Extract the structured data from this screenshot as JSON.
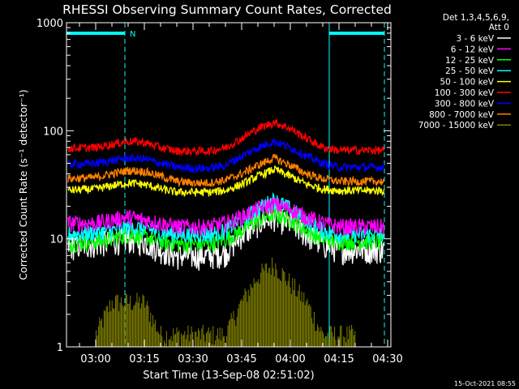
{
  "chart_data": {
    "type": "line",
    "title": "RHESSI Observing Summary Count Rates, Corrected",
    "xlabel": "Start Time (13-Sep-08 02:51:02)",
    "ylabel": "Corrected Count Rate (s⁻¹ detector⁻¹)",
    "y_scale": "log",
    "ylim": [
      1,
      1000
    ],
    "xlim": [
      "02:51",
      "04:31"
    ],
    "x_ticks": [
      "03:00",
      "03:15",
      "03:30",
      "03:45",
      "04:00",
      "04:15",
      "04:30"
    ],
    "y_ticks": [
      "1",
      "10",
      "100",
      "1000"
    ],
    "timestamp": "15-Oct-2021 08:55",
    "legend": {
      "header": [
        "Det 1,3,4,5,6,9,",
        "Att 0"
      ],
      "placement": "right"
    },
    "annotations": [
      {
        "label": "N",
        "color": "#00ffff"
      }
    ],
    "night_periods": [
      {
        "start": "02:51",
        "end": "03:09"
      },
      {
        "start": "04:12",
        "end": "04:29"
      }
    ],
    "x": [
      "02:51",
      "03:00",
      "03:05",
      "03:10",
      "03:15",
      "03:20",
      "03:25",
      "03:30",
      "03:35",
      "03:40",
      "03:45",
      "03:50",
      "03:55",
      "04:00",
      "04:05",
      "04:10",
      "04:15",
      "04:20",
      "04:25",
      "04:29"
    ],
    "series": [
      {
        "name": "3 - 6 keV",
        "color": "#ffffff",
        "values": [
          8.5,
          9,
          9.5,
          10,
          9.5,
          8,
          7,
          7,
          7,
          7.5,
          11,
          14,
          16,
          14,
          11,
          9,
          8,
          8,
          8,
          8
        ]
      },
      {
        "name": "6 - 12 keV",
        "color": "#ff00ff",
        "values": [
          14,
          14,
          15,
          16,
          15,
          14,
          13,
          13,
          13,
          14,
          16,
          19,
          21,
          19,
          16,
          14,
          13,
          13,
          13,
          13
        ]
      },
      {
        "name": "12 - 25 keV",
        "color": "#00ff00",
        "values": [
          9,
          9.5,
          10,
          11,
          10.5,
          9.5,
          9,
          9,
          9,
          10,
          12,
          15,
          17,
          15,
          12,
          10,
          9.5,
          9.5,
          9.5,
          9.5
        ]
      },
      {
        "name": "25 - 50 keV",
        "color": "#00ffff",
        "values": [
          11,
          11.5,
          12,
          13,
          12.5,
          11.5,
          11,
          11,
          11,
          12,
          15,
          19,
          23,
          19,
          15,
          12,
          11,
          11,
          11,
          11
        ]
      },
      {
        "name": "50 - 100 keV",
        "color": "#ffff00",
        "values": [
          28,
          29,
          31,
          33,
          32,
          29,
          27,
          27,
          27,
          28,
          32,
          38,
          44,
          38,
          32,
          29,
          28,
          28,
          28,
          28
        ]
      },
      {
        "name": "100 - 300 keV",
        "color": "#ff0000",
        "values": [
          69,
          70,
          75,
          80,
          78,
          70,
          65,
          65,
          65,
          70,
          85,
          105,
          120,
          105,
          85,
          70,
          66,
          66,
          66,
          66
        ]
      },
      {
        "name": "300 - 800 keV",
        "color": "#0000ff",
        "values": [
          49,
          50,
          53,
          56,
          55,
          50,
          46,
          45,
          45,
          48,
          58,
          70,
          80,
          70,
          58,
          50,
          46,
          46,
          46,
          46
        ]
      },
      {
        "name": "800 - 7000 keV",
        "color": "#ff8000",
        "values": [
          36,
          37,
          40,
          43,
          42,
          38,
          34,
          33,
          33,
          35,
          40,
          48,
          56,
          48,
          40,
          36,
          34,
          34,
          34,
          34
        ]
      },
      {
        "name": "7000 - 15000 keV",
        "color": "#808000",
        "values": [
          null,
          1,
          2,
          2,
          2,
          1,
          1,
          1,
          1,
          1,
          2,
          3.5,
          4.5,
          3,
          2,
          1,
          1,
          1,
          null,
          null
        ]
      }
    ]
  }
}
